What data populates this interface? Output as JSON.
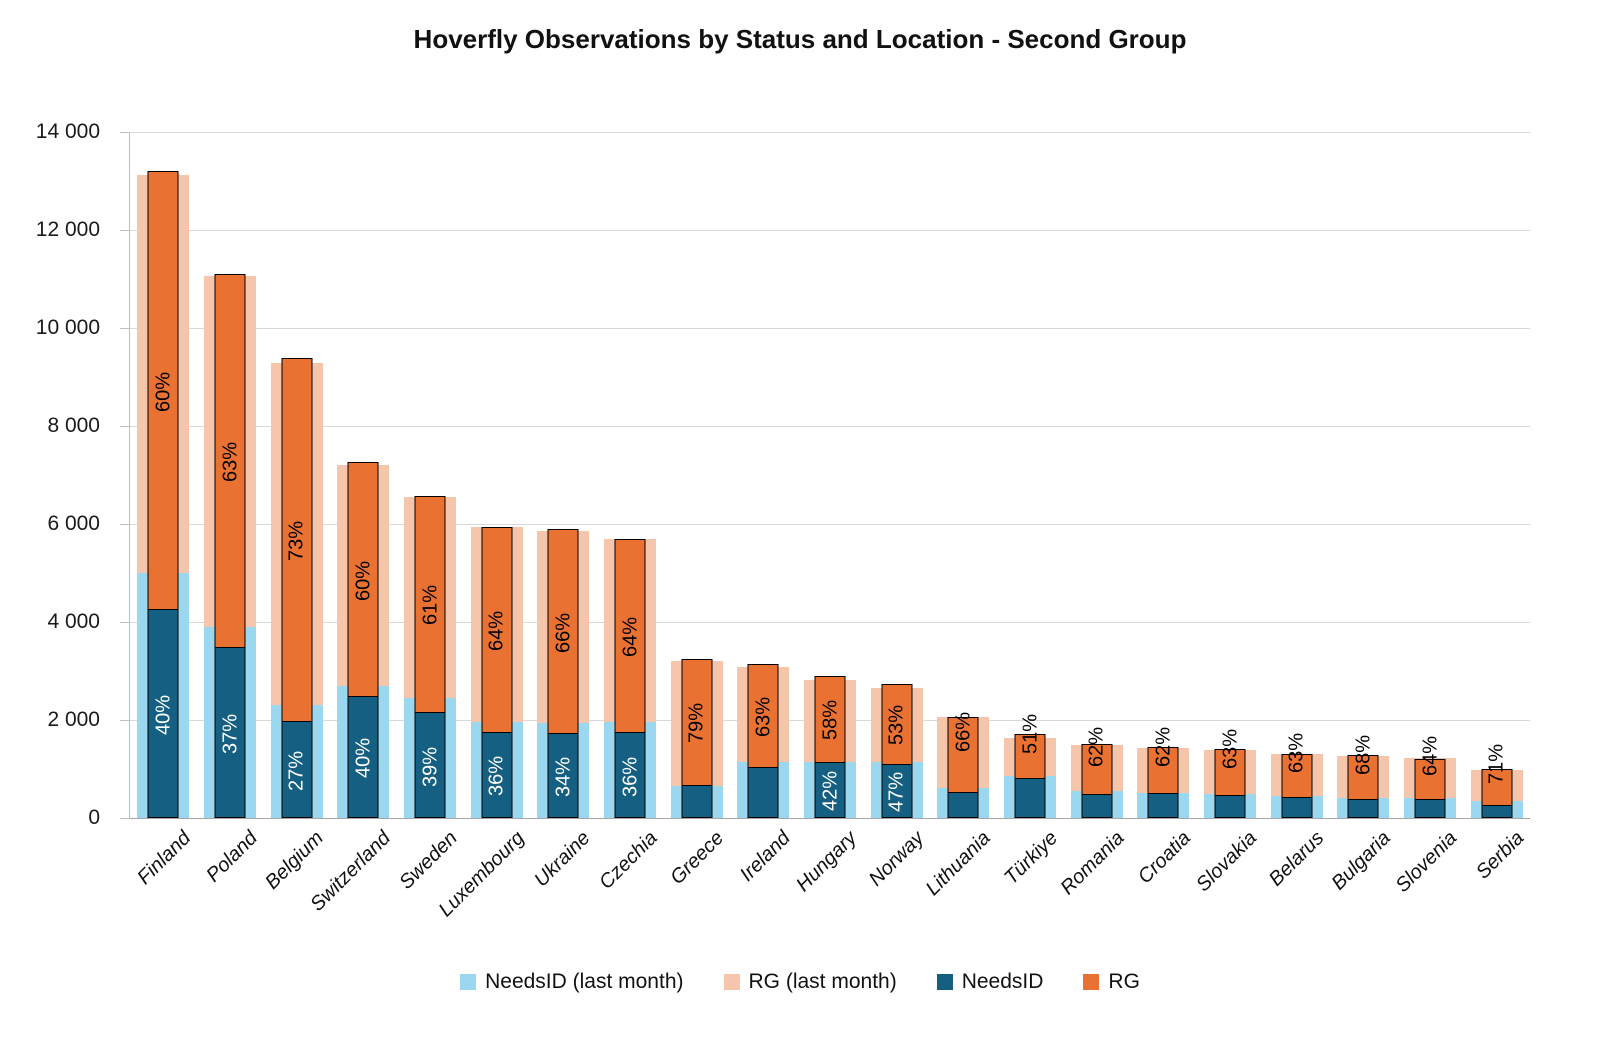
{
  "title": "Hoverfly Observations by Status and Location - Second Group",
  "y_axis": {
    "ticks": [
      "14 000",
      "12 000",
      "10 000",
      "8 000",
      "6 000",
      "4 000",
      "2 000",
      "0"
    ],
    "min": 0,
    "max": 14000,
    "step": 2000
  },
  "legend": {
    "items": [
      {
        "label": "NeedsID (last month)",
        "color": "#9CD7F0"
      },
      {
        "label": "RG (last month)",
        "color": "#F6C6AC"
      },
      {
        "label": "NeedsID",
        "color": "#156082"
      },
      {
        "label": "RG",
        "color": "#E97132"
      }
    ]
  },
  "colors": {
    "needsid_last": "#9CD7F0",
    "rg_last": "#F6C6AC",
    "needsid": "#156082",
    "rg": "#E97132",
    "gridline": "#D9D9D9",
    "axis": "#BFBFBF",
    "bar_outline": "#000000",
    "text": "#111111"
  },
  "countries": [
    {
      "name": "Finland",
      "last_needsid": 5000,
      "last_total": 13130,
      "needsid": 4240,
      "total": 13200,
      "rg_label": "60%",
      "needsid_label": "40%",
      "small": false
    },
    {
      "name": "Poland",
      "last_needsid": 3900,
      "last_total": 11060,
      "needsid": 3460,
      "total": 11100,
      "rg_label": "63%",
      "needsid_label": "37%",
      "small": false
    },
    {
      "name": "Belgium",
      "last_needsid": 2300,
      "last_total": 9290,
      "needsid": 1960,
      "total": 9380,
      "rg_label": "73%",
      "needsid_label": "27%",
      "small": false
    },
    {
      "name": "Switzerland",
      "last_needsid": 2690,
      "last_total": 7210,
      "needsid": 2470,
      "total": 7260,
      "rg_label": "60%",
      "needsid_label": "40%",
      "small": false
    },
    {
      "name": "Sweden",
      "last_needsid": 2440,
      "last_total": 6550,
      "needsid": 2140,
      "total": 6580,
      "rg_label": "61%",
      "needsid_label": "39%",
      "small": false
    },
    {
      "name": "Luxembourg",
      "last_needsid": 1960,
      "last_total": 5945,
      "needsid": 1745,
      "total": 5930,
      "rg_label": "64%",
      "needsid_label": "36%",
      "small": false
    },
    {
      "name": "Ukraine",
      "last_needsid": 1945,
      "last_total": 5855,
      "needsid": 1710,
      "total": 5890,
      "rg_label": "66%",
      "needsid_label": "34%",
      "small": false
    },
    {
      "name": "Czechia",
      "last_needsid": 1955,
      "last_total": 5690,
      "needsid": 1725,
      "total": 5700,
      "rg_label": "64%",
      "needsid_label": "36%",
      "small": false
    },
    {
      "name": "Greece",
      "last_needsid": 655,
      "last_total": 3200,
      "needsid": 645,
      "total": 3255,
      "rg_label": "79%",
      "needsid_label": "",
      "small": false
    },
    {
      "name": "Ireland",
      "last_needsid": 1140,
      "last_total": 3085,
      "needsid": 1030,
      "total": 3135,
      "rg_label": "63%",
      "needsid_label": "",
      "small": false
    },
    {
      "name": "Hungary",
      "last_needsid": 1150,
      "last_total": 2815,
      "needsid": 1130,
      "total": 2895,
      "rg_label": "58%",
      "needsid_label": "42%",
      "small": false
    },
    {
      "name": "Norway",
      "last_needsid": 1140,
      "last_total": 2645,
      "needsid": 1085,
      "total": 2735,
      "rg_label": "53%",
      "needsid_label": "47%",
      "small": false
    },
    {
      "name": "Lithuania",
      "last_needsid": 610,
      "last_total": 2055,
      "needsid": 520,
      "total": 2070,
      "rg_label": "66%",
      "needsid_label": "",
      "small": true
    },
    {
      "name": "Türkiye",
      "last_needsid": 850,
      "last_total": 1630,
      "needsid": 795,
      "total": 1710,
      "rg_label": "51%",
      "needsid_label": "",
      "small": true
    },
    {
      "name": "Romania",
      "last_needsid": 555,
      "last_total": 1485,
      "needsid": 470,
      "total": 1505,
      "rg_label": "62%",
      "needsid_label": "",
      "small": true
    },
    {
      "name": "Croatia",
      "last_needsid": 510,
      "last_total": 1425,
      "needsid": 500,
      "total": 1450,
      "rg_label": "62%",
      "needsid_label": "",
      "small": true
    },
    {
      "name": "Slovakia",
      "last_needsid": 490,
      "last_total": 1385,
      "needsid": 455,
      "total": 1405,
      "rg_label": "63%",
      "needsid_label": "",
      "small": true
    },
    {
      "name": "Belarus",
      "last_needsid": 455,
      "last_total": 1300,
      "needsid": 400,
      "total": 1315,
      "rg_label": "63%",
      "needsid_label": "",
      "small": true
    },
    {
      "name": "Bulgaria",
      "last_needsid": 400,
      "last_total": 1270,
      "needsid": 365,
      "total": 1280,
      "rg_label": "68%",
      "needsid_label": "",
      "small": true
    },
    {
      "name": "Slovenia",
      "last_needsid": 400,
      "last_total": 1230,
      "needsid": 370,
      "total": 1210,
      "rg_label": "64%",
      "needsid_label": "",
      "small": true
    },
    {
      "name": "Serbia",
      "last_needsid": 350,
      "last_total": 970,
      "needsid": 255,
      "total": 1010,
      "rg_label": "71%",
      "needsid_label": "",
      "small": true
    }
  ],
  "chart_data": {
    "type": "bar",
    "stacked": true,
    "title": "Hoverfly Observations by Status and Location - Second Group",
    "xlabel": "",
    "ylabel": "",
    "ylim": [
      0,
      14000
    ],
    "grid": true,
    "legend_position": "bottom",
    "categories": [
      "Finland",
      "Poland",
      "Belgium",
      "Switzerland",
      "Sweden",
      "Luxembourg",
      "Ukraine",
      "Czechia",
      "Greece",
      "Ireland",
      "Hungary",
      "Norway",
      "Lithuania",
      "Türkiye",
      "Romania",
      "Croatia",
      "Slovakia",
      "Belarus",
      "Bulgaria",
      "Slovenia",
      "Serbia"
    ],
    "series": [
      {
        "name": "NeedsID (last month)",
        "color": "#9CD7F0",
        "values": [
          5000,
          3900,
          2300,
          2690,
          2440,
          1960,
          1945,
          1955,
          655,
          1140,
          1150,
          1140,
          610,
          850,
          555,
          510,
          490,
          455,
          400,
          400,
          350
        ]
      },
      {
        "name": "RG (last month)",
        "color": "#F6C6AC",
        "values": [
          8130,
          7160,
          6990,
          4520,
          4110,
          3985,
          3910,
          3735,
          2545,
          1945,
          1665,
          1505,
          1445,
          780,
          930,
          915,
          895,
          845,
          870,
          830,
          620
        ]
      },
      {
        "name": "NeedsID",
        "color": "#156082",
        "values": [
          4240,
          3460,
          1960,
          2470,
          2140,
          1745,
          1710,
          1725,
          645,
          1030,
          1130,
          1085,
          520,
          795,
          470,
          500,
          455,
          400,
          365,
          370,
          255
        ]
      },
      {
        "name": "RG",
        "color": "#E97132",
        "values": [
          8960,
          7640,
          7420,
          4790,
          4440,
          4185,
          4180,
          3975,
          2610,
          2105,
          1765,
          1650,
          1550,
          915,
          1035,
          950,
          950,
          915,
          915,
          840,
          755
        ]
      }
    ],
    "rg_percent_labels": [
      "60%",
      "63%",
      "73%",
      "60%",
      "61%",
      "64%",
      "66%",
      "64%",
      "79%",
      "63%",
      "58%",
      "53%",
      "66%",
      "51%",
      "62%",
      "62%",
      "63%",
      "63%",
      "68%",
      "64%",
      "71%"
    ],
    "needsid_percent_labels": [
      "40%",
      "37%",
      "27%",
      "40%",
      "39%",
      "36%",
      "34%",
      "36%",
      "",
      "",
      "42%",
      "47%",
      "",
      "",
      "",
      "",
      "",
      "",
      "",
      "",
      ""
    ]
  }
}
